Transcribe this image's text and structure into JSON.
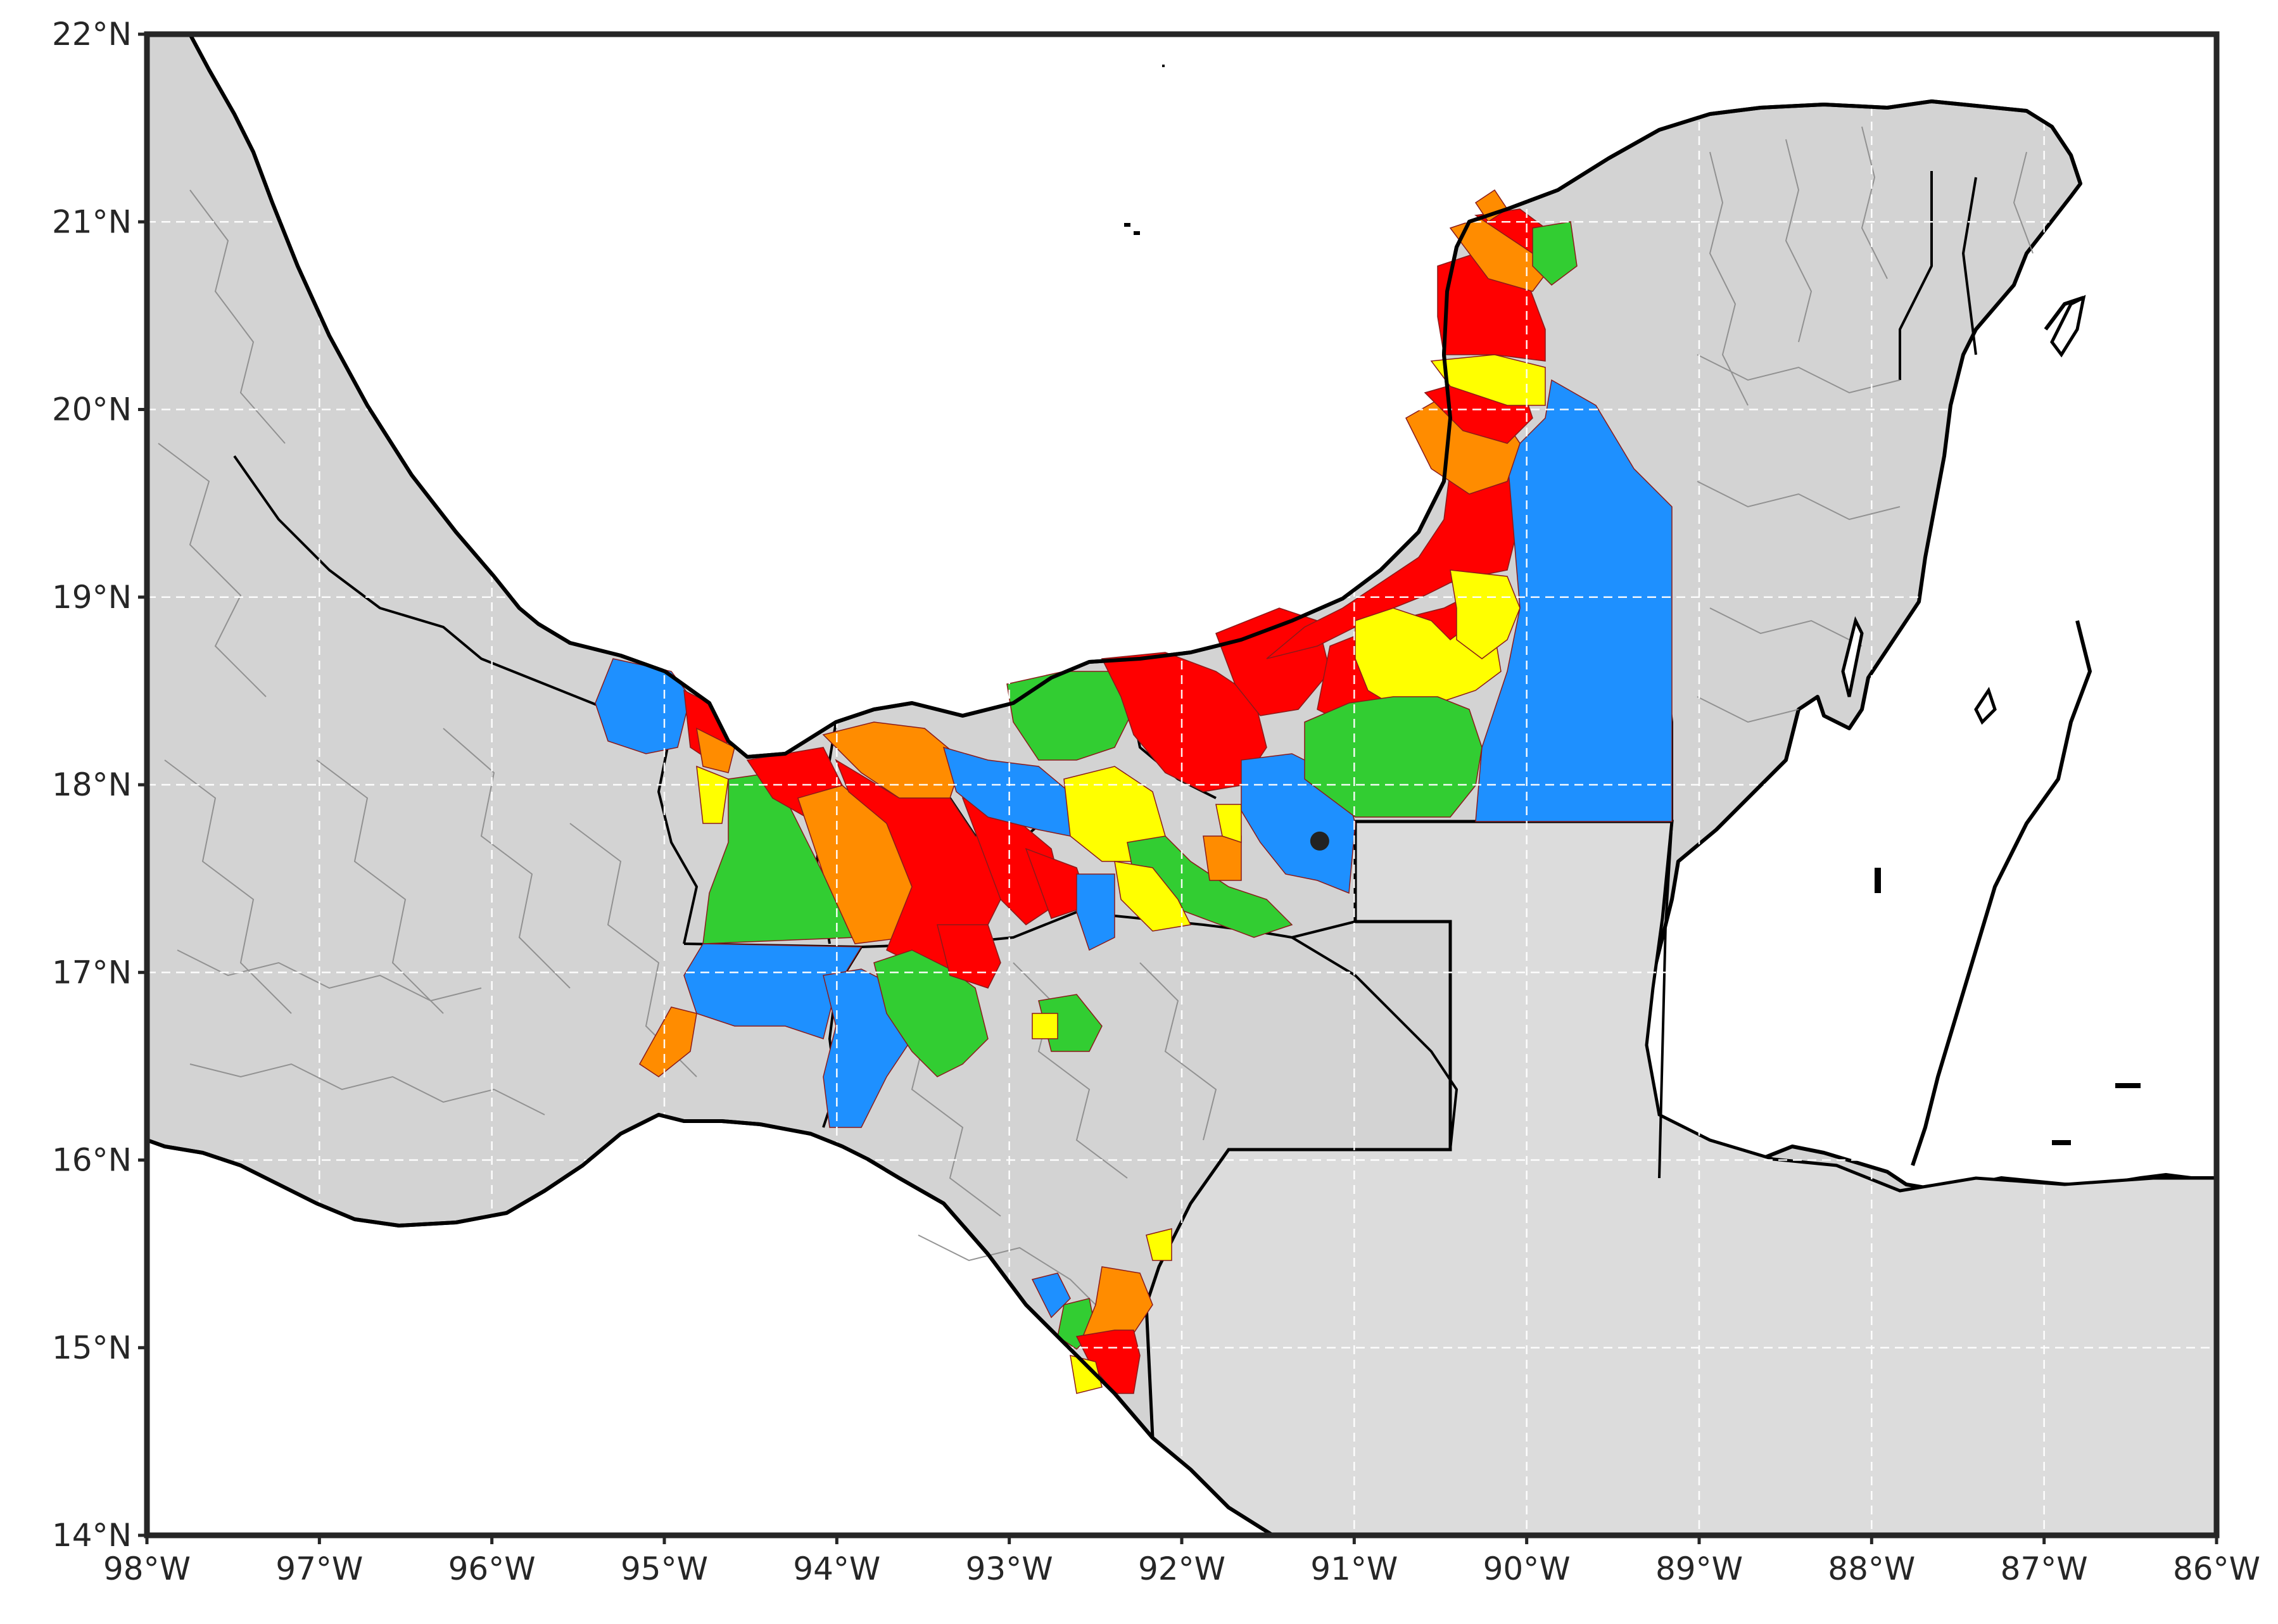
{
  "map": {
    "projection": "PlateCarree",
    "lon_range": [
      -98,
      -86
    ],
    "lat_range": [
      14,
      22
    ],
    "grid": true,
    "land_color": "#d3d3d3",
    "ocean_color": "#ffffff",
    "border_color": "#000000",
    "municipality_border_color": "#8a8a8a",
    "category_colors": [
      "#1e90ff",
      "#32cd32",
      "#ffff00",
      "#ff8c00",
      "#ff0000"
    ],
    "point_marker": {
      "lon": -91.2,
      "lat": 17.7,
      "color": "#222222"
    }
  },
  "axes": {
    "x_ticks": [
      {
        "value": -98,
        "label": "98°W"
      },
      {
        "value": -97,
        "label": "97°W"
      },
      {
        "value": -96,
        "label": "96°W"
      },
      {
        "value": -95,
        "label": "95°W"
      },
      {
        "value": -94,
        "label": "94°W"
      },
      {
        "value": -93,
        "label": "93°W"
      },
      {
        "value": -92,
        "label": "92°W"
      },
      {
        "value": -91,
        "label": "91°W"
      },
      {
        "value": -90,
        "label": "90°W"
      },
      {
        "value": -89,
        "label": "89°W"
      },
      {
        "value": -88,
        "label": "88°W"
      },
      {
        "value": -87,
        "label": "87°W"
      },
      {
        "value": -86,
        "label": "86°W"
      }
    ],
    "y_ticks": [
      {
        "value": 14,
        "label": "14°N"
      },
      {
        "value": 15,
        "label": "15°N"
      },
      {
        "value": 16,
        "label": "16°N"
      },
      {
        "value": 17,
        "label": "17°N"
      },
      {
        "value": 18,
        "label": "18°N"
      },
      {
        "value": 19,
        "label": "19°N"
      },
      {
        "value": 20,
        "label": "20°N"
      },
      {
        "value": 21,
        "label": "21°N"
      },
      {
        "value": 22,
        "label": "22°N"
      }
    ]
  }
}
